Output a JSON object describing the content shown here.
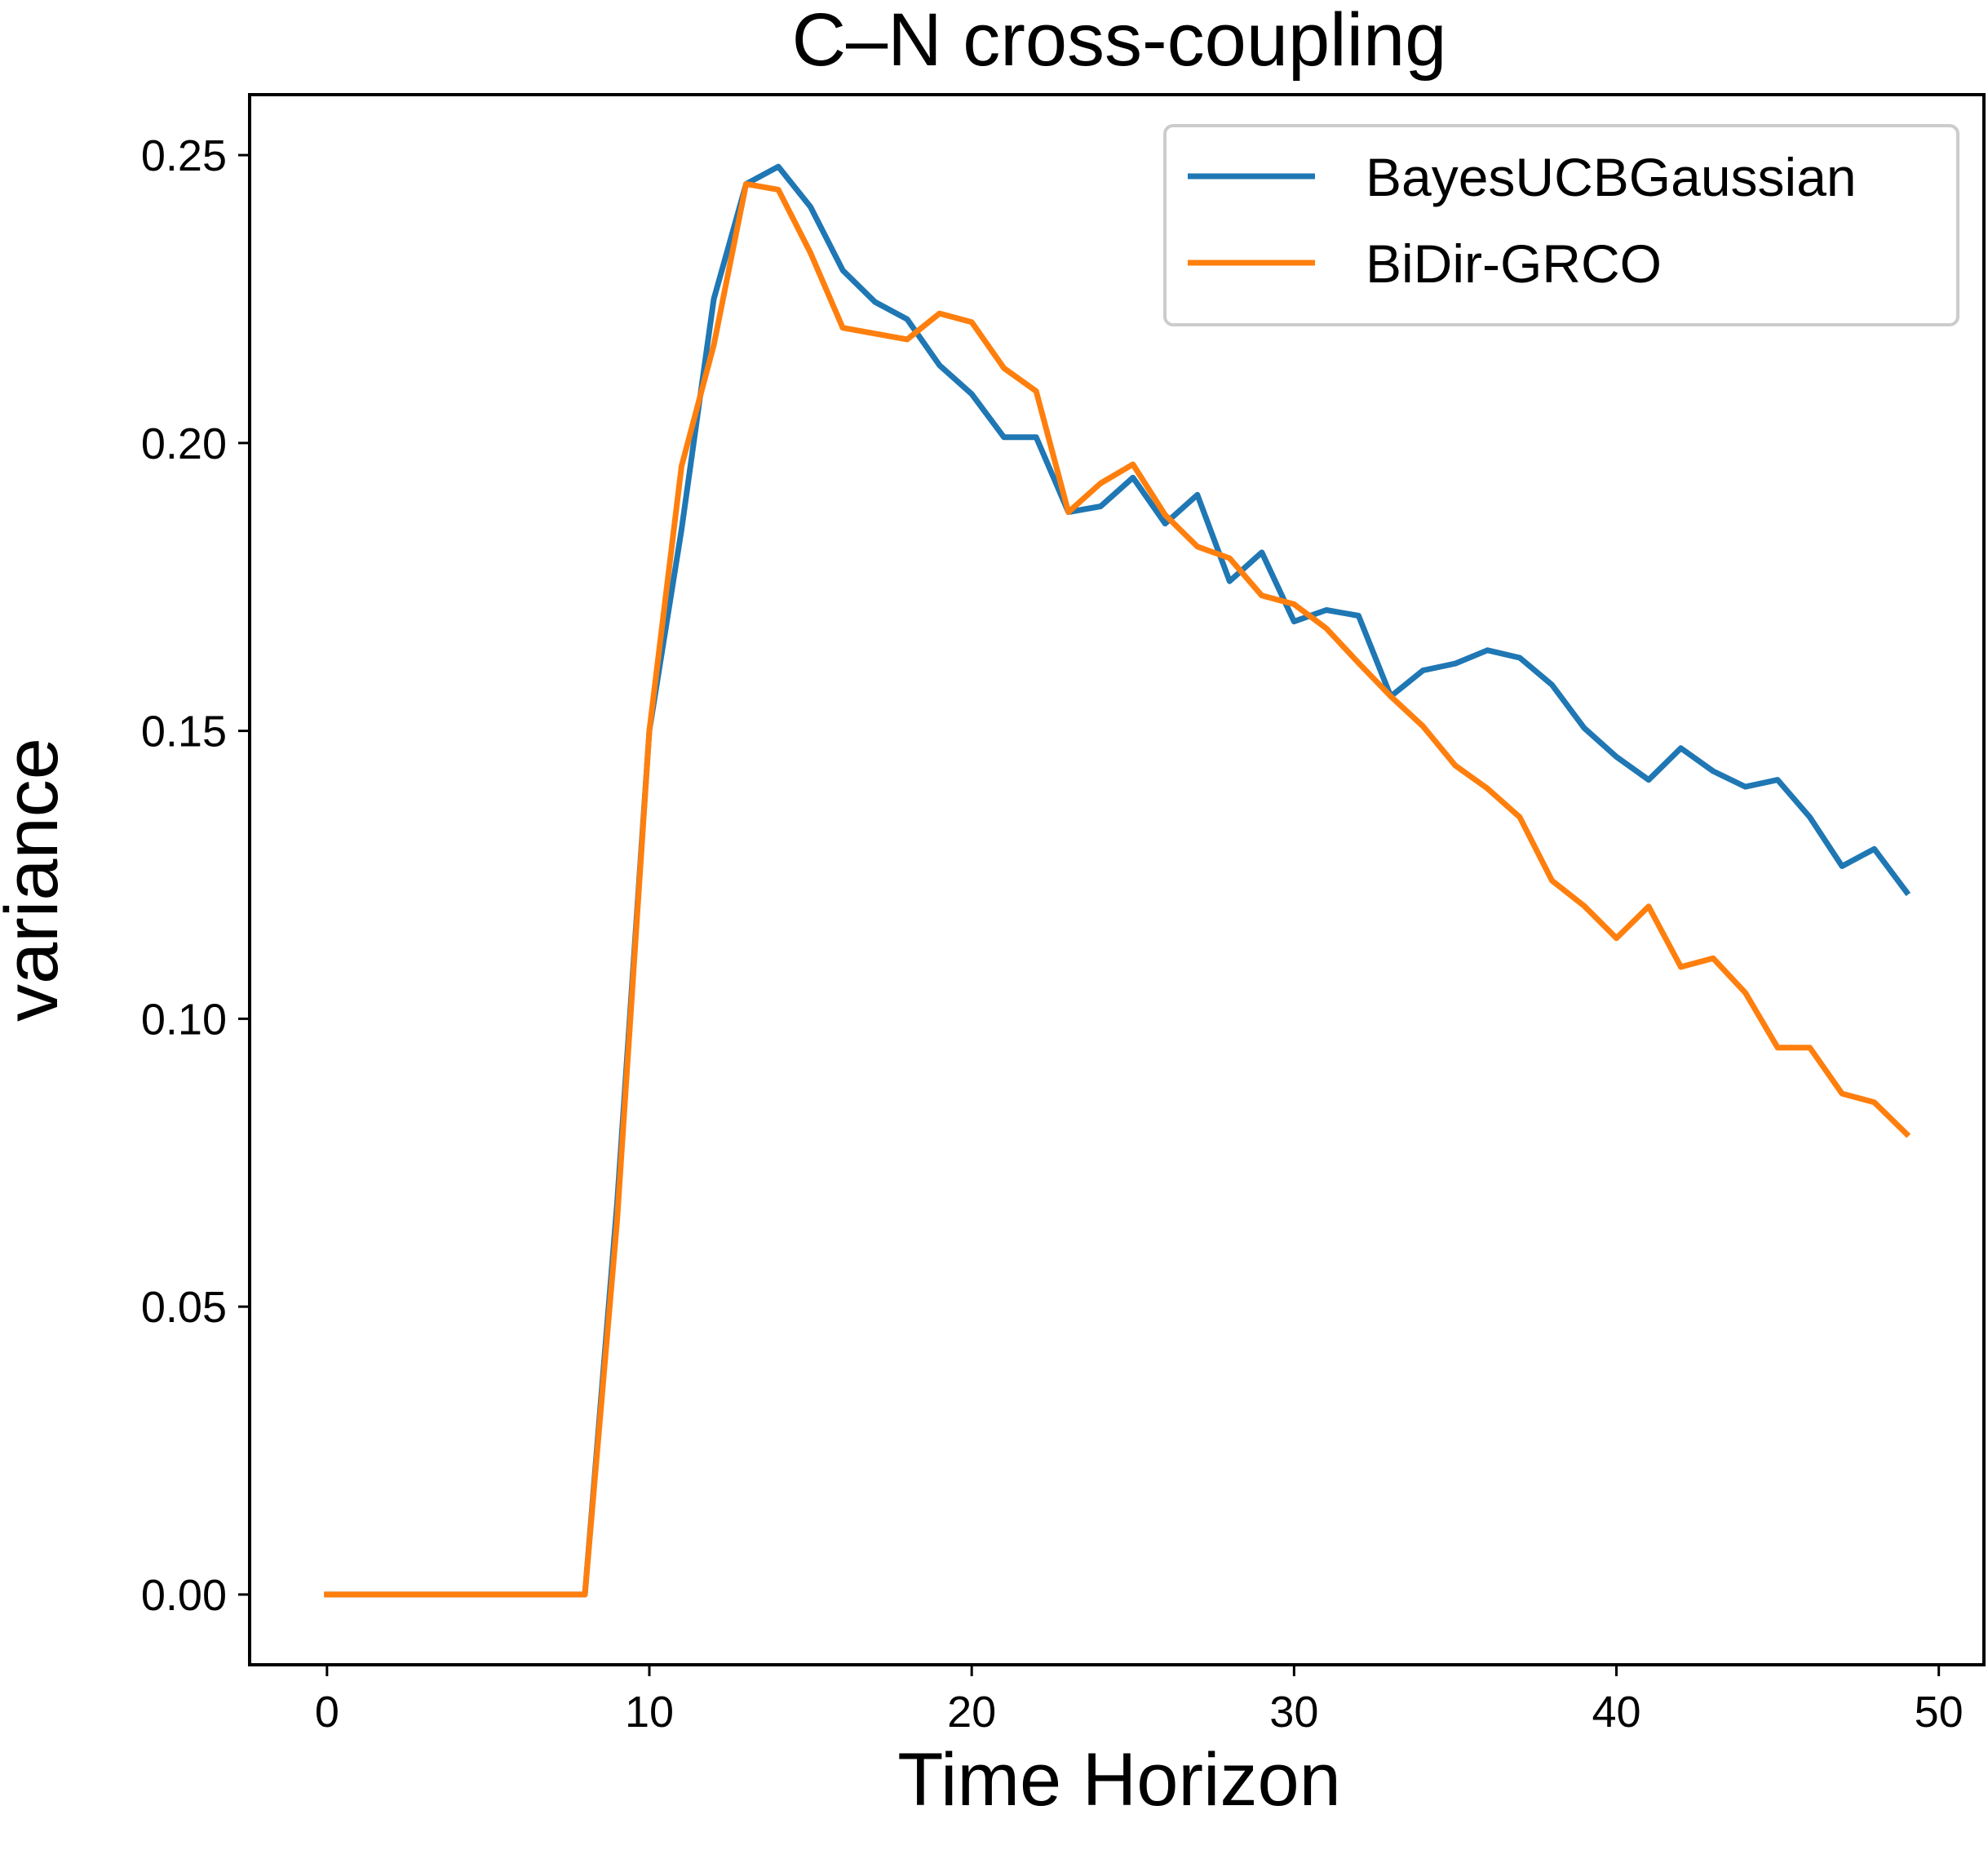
{
  "chart_data": {
    "type": "line",
    "title": "C–N cross-coupling",
    "xlabel": "Time Horizon",
    "ylabel": "variance",
    "xlim": [
      -2.4,
      51.4
    ],
    "ylim": [
      -0.0122,
      0.2605
    ],
    "xticks": [
      0,
      10,
      20,
      30,
      40,
      50
    ],
    "yticks": [
      0.0,
      0.05,
      0.1,
      0.15,
      0.2,
      0.25
    ],
    "ytick_labels": [
      "0.00",
      "0.05",
      "0.10",
      "0.15",
      "0.20",
      "0.25"
    ],
    "legend_position": "top-right",
    "grid": false,
    "x": [
      0,
      1,
      2,
      3,
      4,
      5,
      6,
      7,
      8,
      9,
      10,
      11,
      12,
      13,
      14,
      15,
      16,
      17,
      18,
      19,
      20,
      21,
      22,
      23,
      24,
      25,
      26,
      27,
      28,
      29,
      30,
      31,
      32,
      33,
      34,
      35,
      36,
      37,
      38,
      39,
      40,
      41,
      42,
      43,
      44,
      45,
      46,
      47,
      48,
      49
    ],
    "series": [
      {
        "name": "BayesUCBGaussian",
        "color": "#1f77b4",
        "values": [
          0,
          0,
          0,
          0,
          0,
          0,
          0,
          0,
          0,
          0.068,
          0.15,
          0.185,
          0.225,
          0.245,
          0.248,
          0.241,
          0.23,
          0.2245,
          0.2215,
          0.2135,
          0.2085,
          0.201,
          0.201,
          0.188,
          0.189,
          0.194,
          0.186,
          0.191,
          0.176,
          0.181,
          0.169,
          0.171,
          0.17,
          0.156,
          0.1605,
          0.1617,
          0.164,
          0.1627,
          0.158,
          0.1505,
          0.1455,
          0.1415,
          0.147,
          0.143,
          0.1403,
          0.1415,
          0.135,
          0.1265,
          0.1295,
          0.122
        ]
      },
      {
        "name": "BiDir-GRCO",
        "color": "#ff7f0e",
        "values": [
          0,
          0,
          0,
          0,
          0,
          0,
          0,
          0,
          0,
          0.065,
          0.15,
          0.196,
          0.217,
          0.245,
          0.244,
          0.233,
          0.22,
          0.219,
          0.218,
          0.2225,
          0.221,
          0.213,
          0.209,
          0.188,
          0.193,
          0.1963,
          0.1875,
          0.182,
          0.18,
          0.1735,
          0.172,
          0.1678,
          0.1618,
          0.156,
          0.1508,
          0.144,
          0.14,
          0.135,
          0.124,
          0.1196,
          0.114,
          0.1195,
          0.109,
          0.1105,
          0.1045,
          0.095,
          0.095,
          0.087,
          0.0855,
          0.08
        ]
      }
    ]
  }
}
